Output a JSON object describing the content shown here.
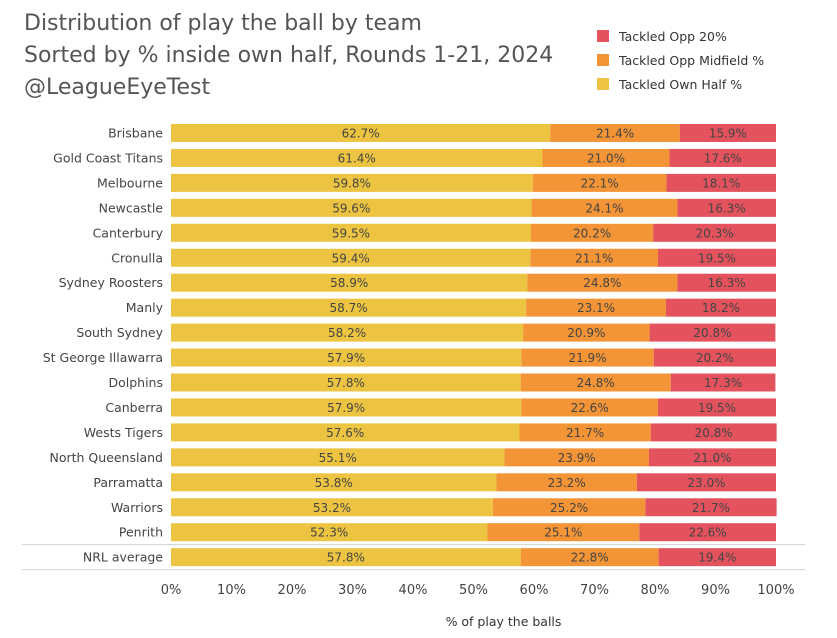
{
  "title_lines": [
    "Distribution of play the ball by team",
    "Sorted by % inside own half, Rounds 1-21, 2024",
    "@LeagueEyeTest"
  ],
  "colors": {
    "own_half": "#ecc441",
    "midfield": "#f39436",
    "opp20": "#e4535d",
    "label_text": "#444444",
    "axis_text": "#444444"
  },
  "chart_data": {
    "type": "bar",
    "orientation": "horizontal",
    "stacked": true,
    "categories": [
      "Brisbane",
      "Gold Coast Titans",
      "Melbourne",
      "Newcastle",
      "Canterbury",
      "Cronulla",
      "Sydney Roosters",
      "Manly",
      "South Sydney",
      "St George Illawarra",
      "Dolphins",
      "Canberra",
      "Wests Tigers",
      "North Queensland",
      "Parramatta",
      "Warriors",
      "Penrith",
      "NRL average"
    ],
    "series": [
      {
        "name": "Tackled Own Half %",
        "color": "#ecc441",
        "values": [
          62.7,
          61.4,
          59.8,
          59.6,
          59.5,
          59.4,
          58.9,
          58.7,
          58.2,
          57.9,
          57.8,
          57.9,
          57.6,
          55.1,
          53.8,
          53.2,
          52.3,
          57.8
        ]
      },
      {
        "name": "Tackled Opp Midfield %",
        "color": "#f39436",
        "values": [
          21.4,
          21.0,
          22.1,
          24.1,
          20.2,
          21.1,
          24.8,
          23.1,
          20.9,
          21.9,
          24.8,
          22.6,
          21.7,
          23.9,
          23.2,
          25.2,
          25.1,
          22.8
        ]
      },
      {
        "name": "Tackled Opp 20%",
        "color": "#e4535d",
        "values": [
          15.9,
          17.6,
          18.1,
          16.3,
          20.3,
          19.5,
          16.3,
          18.2,
          20.8,
          20.2,
          17.3,
          19.5,
          20.8,
          21.0,
          23.0,
          21.7,
          22.6,
          19.4
        ]
      }
    ],
    "legend_order": [
      "Tackled Opp 20%",
      "Tackled Opp Midfield %",
      "Tackled Own Half %"
    ],
    "legend_position": "top-right",
    "xlabel": "% of play the balls",
    "xlim": [
      0,
      100
    ],
    "xticks": [
      0,
      10,
      20,
      30,
      40,
      50,
      60,
      70,
      80,
      90,
      100
    ],
    "xtick_labels": [
      "0%",
      "10%",
      "20%",
      "30%",
      "40%",
      "50%",
      "60%",
      "70%",
      "80%",
      "90%",
      "100%"
    ],
    "value_label_suffix": "%",
    "grid": false
  }
}
